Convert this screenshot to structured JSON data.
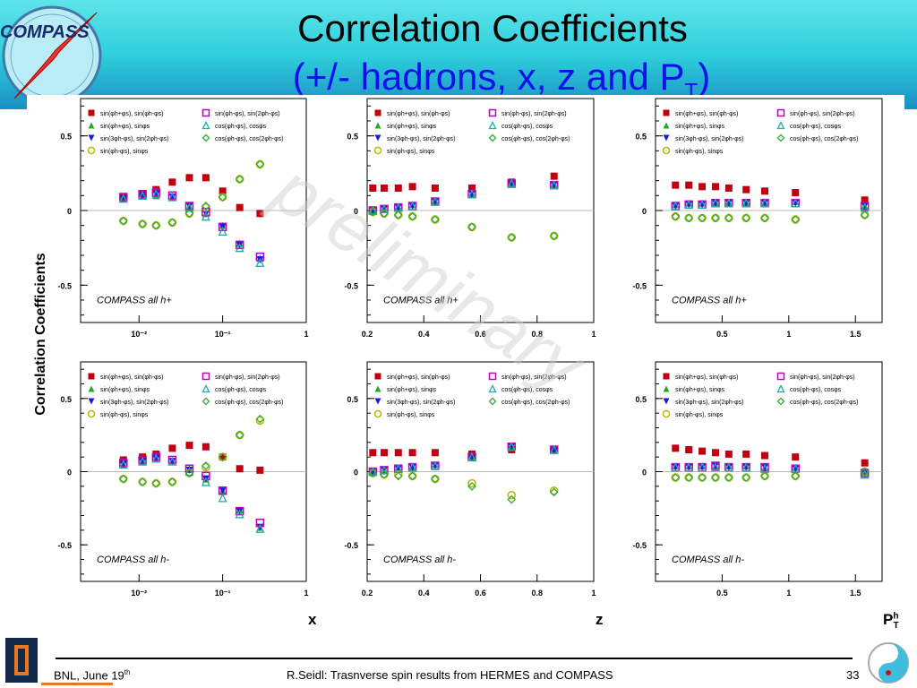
{
  "header": {
    "logo_text": "COMPASS",
    "title_line1": "Correlation Coefficients",
    "title_line2": "(+/- hadrons, x, z and P",
    "title_line2_sub": "T",
    "title_line2_end": ")"
  },
  "axes": {
    "ylabel": "Correlation Coefficients",
    "x_label": "x",
    "z_label": "z",
    "pt_label": "P",
    "pt_sup": "h",
    "pt_sub": "T"
  },
  "footer": {
    "left": "BNL, June 19",
    "left_sup": "th",
    "middle": "R.Seidl: Trasnverse spin results from HERMES and COMPASS",
    "page": "33"
  },
  "watermark": "preliminary",
  "legend": [
    {
      "label": "sin(φh+φs), sin(φh-φs)",
      "marker": "square-filled",
      "color": "#c0000f"
    },
    {
      "label": "sin(φh+φs), sinφs",
      "marker": "triangle-up",
      "color": "#22aa22"
    },
    {
      "label": "sin(3φh-φs), sin(2φh-φs)",
      "marker": "triangle-down",
      "color": "#1a1adc"
    },
    {
      "label": "sin(φh-φs), sinφs",
      "marker": "circle-open",
      "color": "#b8b800"
    },
    {
      "label": "sin(φh-φs), sin(2φh-φs)",
      "marker": "square-open",
      "color": "#c000c0"
    },
    {
      "label": "cos(φh-φs), cosφs",
      "marker": "triangle-open",
      "color": "#22aaaa"
    },
    {
      "label": "cos(φh-φs), cos(2φh-φs)",
      "marker": "diamond-open",
      "color": "#33aa33"
    }
  ],
  "chart_data": [
    {
      "type": "scatter",
      "id": "x_pos",
      "annotation": "COMPASS all h+",
      "xscale": "log",
      "xlim": [
        0.002,
        1
      ],
      "ylim": [
        -0.75,
        0.75
      ],
      "xticks": [
        "10⁻²",
        "10⁻¹",
        "1"
      ],
      "yticks": [
        "0.5",
        "0",
        "-0.5"
      ],
      "x": [
        0.0065,
        0.011,
        0.016,
        0.025,
        0.04,
        0.063,
        0.1,
        0.16,
        0.28
      ],
      "series": [
        {
          "name": "sin(φh+φs), sin(φh-φs)",
          "values": [
            0.09,
            0.11,
            0.14,
            0.19,
            0.22,
            0.22,
            0.13,
            0.02,
            -0.02
          ]
        },
        {
          "name": "sin(φh+φs), sinφs",
          "values": [
            0.08,
            0.1,
            0.1,
            0.09,
            0.03,
            -0.02,
            -0.1,
            -0.22,
            -0.32
          ]
        },
        {
          "name": "sin(3φh-φs), sin(2φh-φs)",
          "values": [
            0.08,
            0.1,
            0.11,
            0.09,
            0.03,
            -0.02,
            -0.11,
            -0.23,
            -0.33
          ]
        },
        {
          "name": "sin(φh-φs), sinφs",
          "values": [
            -0.07,
            -0.09,
            -0.1,
            -0.08,
            -0.02,
            0.02,
            0.09,
            0.21,
            0.31
          ]
        },
        {
          "name": "sin(φh-φs), sin(2φh-φs)",
          "values": [
            0.09,
            0.11,
            0.12,
            0.1,
            0.03,
            -0.01,
            -0.11,
            -0.23,
            -0.31
          ]
        },
        {
          "name": "cos(φh-φs), cosφs",
          "values": [
            0.08,
            0.1,
            0.11,
            0.09,
            0.02,
            -0.04,
            -0.14,
            -0.25,
            -0.35
          ]
        },
        {
          "name": "cos(φh-φs), cos(2φh-φs)",
          "values": [
            -0.07,
            -0.09,
            -0.1,
            -0.08,
            -0.02,
            0.03,
            0.09,
            0.21,
            0.31
          ]
        }
      ]
    },
    {
      "type": "scatter",
      "id": "z_pos",
      "annotation": "COMPASS all h+",
      "xscale": "linear",
      "xlim": [
        0.2,
        1
      ],
      "ylim": [
        -0.75,
        0.75
      ],
      "xticks": [
        "0.2",
        "0.4",
        "0.6",
        "0.8",
        "1"
      ],
      "yticks": [
        "0.5",
        "0",
        "-0.5"
      ],
      "x": [
        0.22,
        0.26,
        0.31,
        0.36,
        0.44,
        0.57,
        0.71,
        0.86
      ],
      "series": [
        {
          "name": "sin(φh+φs), sin(φh-φs)",
          "values": [
            0.15,
            0.15,
            0.15,
            0.16,
            0.15,
            0.15,
            0.19,
            0.23
          ]
        },
        {
          "name": "sin(φh+φs), sinφs",
          "values": [
            0.0,
            0.01,
            0.02,
            0.04,
            0.06,
            0.11,
            0.18,
            0.17
          ]
        },
        {
          "name": "sin(3φh-φs), sin(2φh-φs)",
          "values": [
            0.0,
            0.01,
            0.02,
            0.03,
            0.06,
            0.11,
            0.18,
            0.17
          ]
        },
        {
          "name": "sin(φh-φs), sinφs",
          "values": [
            -0.01,
            -0.02,
            -0.03,
            -0.04,
            -0.06,
            -0.11,
            -0.18,
            -0.17
          ]
        },
        {
          "name": "sin(φh-φs), sin(2φh-φs)",
          "values": [
            0.0,
            0.01,
            0.02,
            0.03,
            0.06,
            0.11,
            0.18,
            0.17
          ]
        },
        {
          "name": "cos(φh-φs), cosφs",
          "values": [
            0.0,
            0.01,
            0.02,
            0.03,
            0.06,
            0.11,
            0.18,
            0.17
          ]
        },
        {
          "name": "cos(φh-φs), cos(2φh-φs)",
          "values": [
            -0.01,
            -0.02,
            -0.03,
            -0.04,
            -0.06,
            -0.11,
            -0.18,
            -0.17
          ]
        }
      ]
    },
    {
      "type": "scatter",
      "id": "pt_pos",
      "annotation": "COMPASS all h+",
      "xscale": "linear",
      "xlim": [
        0,
        1.7
      ],
      "ylim": [
        -0.75,
        0.75
      ],
      "xticks": [
        "0.5",
        "1",
        "1.5"
      ],
      "yticks": [
        "0.5",
        "0",
        "-0.5"
      ],
      "x": [
        0.15,
        0.25,
        0.35,
        0.45,
        0.55,
        0.68,
        0.82,
        1.05,
        1.57
      ],
      "series": [
        {
          "name": "sin(φh+φs), sin(φh-φs)",
          "values": [
            0.17,
            0.17,
            0.16,
            0.16,
            0.15,
            0.14,
            0.13,
            0.12,
            0.07
          ]
        },
        {
          "name": "sin(φh+φs), sinφs",
          "values": [
            0.04,
            0.05,
            0.05,
            0.05,
            0.05,
            0.05,
            0.05,
            0.06,
            0.03
          ]
        },
        {
          "name": "sin(3φh-φs), sin(2φh-φs)",
          "values": [
            0.03,
            0.04,
            0.04,
            0.05,
            0.05,
            0.05,
            0.05,
            0.05,
            0.03
          ]
        },
        {
          "name": "sin(φh-φs), sinφs",
          "values": [
            -0.04,
            -0.05,
            -0.05,
            -0.05,
            -0.05,
            -0.05,
            -0.05,
            -0.06,
            -0.03
          ]
        },
        {
          "name": "sin(φh-φs), sin(2φh-φs)",
          "values": [
            0.03,
            0.04,
            0.04,
            0.05,
            0.05,
            0.05,
            0.05,
            0.05,
            0.03
          ]
        },
        {
          "name": "cos(φh-φs), cosφs",
          "values": [
            0.03,
            0.04,
            0.04,
            0.05,
            0.05,
            0.05,
            0.05,
            0.05,
            0.02
          ]
        },
        {
          "name": "cos(φh-φs), cos(2φh-φs)",
          "values": [
            -0.04,
            -0.05,
            -0.05,
            -0.05,
            -0.05,
            -0.05,
            -0.05,
            -0.06,
            -0.03
          ]
        }
      ]
    },
    {
      "type": "scatter",
      "id": "x_neg",
      "annotation": "COMPASS all h-",
      "xscale": "log",
      "xlim": [
        0.002,
        1
      ],
      "ylim": [
        -0.75,
        0.75
      ],
      "xticks": [
        "10⁻²",
        "10⁻¹",
        "1"
      ],
      "yticks": [
        "0.5",
        "0",
        "-0.5"
      ],
      "x": [
        0.0065,
        0.011,
        0.016,
        0.025,
        0.04,
        0.063,
        0.1,
        0.16,
        0.28
      ],
      "series": [
        {
          "name": "sin(φh+φs), sin(φh-φs)",
          "values": [
            0.08,
            0.1,
            0.12,
            0.16,
            0.18,
            0.17,
            0.1,
            0.02,
            0.01
          ]
        },
        {
          "name": "sin(φh+φs), sinφs",
          "values": [
            0.05,
            0.07,
            0.1,
            0.08,
            0.02,
            -0.05,
            -0.13,
            -0.26,
            -0.38
          ]
        },
        {
          "name": "sin(3φh-φs), sin(2φh-φs)",
          "values": [
            0.05,
            0.07,
            0.09,
            0.07,
            0.01,
            -0.05,
            -0.13,
            -0.27,
            -0.38
          ]
        },
        {
          "name": "sin(φh-φs), sinφs",
          "values": [
            -0.05,
            -0.07,
            -0.08,
            -0.07,
            -0.01,
            0.03,
            0.1,
            0.25,
            0.35
          ]
        },
        {
          "name": "sin(φh-φs), sin(2φh-φs)",
          "values": [
            0.06,
            0.08,
            0.1,
            0.08,
            0.02,
            -0.03,
            -0.13,
            -0.27,
            -0.35
          ]
        },
        {
          "name": "cos(φh-φs), cosφs",
          "values": [
            0.05,
            0.07,
            0.09,
            0.07,
            0.0,
            -0.07,
            -0.18,
            -0.29,
            -0.39
          ]
        },
        {
          "name": "cos(φh-φs), cos(2φh-φs)",
          "values": [
            -0.05,
            -0.07,
            -0.08,
            -0.07,
            -0.01,
            0.04,
            0.1,
            0.25,
            0.36
          ]
        }
      ]
    },
    {
      "type": "scatter",
      "id": "z_neg",
      "annotation": "COMPASS all h-",
      "xscale": "linear",
      "xlim": [
        0.2,
        1
      ],
      "ylim": [
        -0.75,
        0.75
      ],
      "xticks": [
        "0.2",
        "0.4",
        "0.6",
        "0.8",
        "1"
      ],
      "yticks": [
        "0.5",
        "0",
        "-0.5"
      ],
      "x": [
        0.22,
        0.26,
        0.31,
        0.36,
        0.44,
        0.57,
        0.71,
        0.86
      ],
      "series": [
        {
          "name": "sin(φh+φs), sin(φh-φs)",
          "values": [
            0.13,
            0.13,
            0.13,
            0.13,
            0.13,
            0.12,
            0.15,
            0.15
          ]
        },
        {
          "name": "sin(φh+φs), sinφs",
          "values": [
            0.0,
            0.01,
            0.02,
            0.03,
            0.05,
            0.1,
            0.17,
            0.15
          ]
        },
        {
          "name": "sin(3φh-φs), sin(2φh-φs)",
          "values": [
            0.0,
            0.01,
            0.02,
            0.03,
            0.04,
            0.1,
            0.17,
            0.14
          ]
        },
        {
          "name": "sin(φh-φs), sinφs",
          "values": [
            -0.01,
            -0.02,
            -0.02,
            -0.03,
            -0.05,
            -0.08,
            -0.16,
            -0.13
          ]
        },
        {
          "name": "sin(φh-φs), sin(2φh-φs)",
          "values": [
            0.0,
            0.01,
            0.02,
            0.03,
            0.04,
            0.1,
            0.17,
            0.15
          ]
        },
        {
          "name": "cos(φh-φs), cosφs",
          "values": [
            0.0,
            0.01,
            0.02,
            0.03,
            0.04,
            0.1,
            0.17,
            0.15
          ]
        },
        {
          "name": "cos(φh-φs), cos(2φh-φs)",
          "values": [
            -0.01,
            -0.02,
            -0.03,
            -0.03,
            -0.05,
            -0.1,
            -0.19,
            -0.14
          ]
        }
      ]
    },
    {
      "type": "scatter",
      "id": "pt_neg",
      "annotation": "COMPASS all h-",
      "xscale": "linear",
      "xlim": [
        0,
        1.7
      ],
      "ylim": [
        -0.75,
        0.75
      ],
      "xticks": [
        "0.5",
        "1",
        "1.5"
      ],
      "yticks": [
        "0.5",
        "0",
        "-0.5"
      ],
      "x": [
        0.15,
        0.25,
        0.35,
        0.45,
        0.55,
        0.68,
        0.82,
        1.05,
        1.57
      ],
      "series": [
        {
          "name": "sin(φh+φs), sin(φh-φs)",
          "values": [
            0.16,
            0.15,
            0.14,
            0.13,
            0.12,
            0.12,
            0.11,
            0.1,
            0.06
          ]
        },
        {
          "name": "sin(φh+φs), sinφs",
          "values": [
            0.04,
            0.04,
            0.04,
            0.04,
            0.04,
            0.04,
            0.03,
            0.03,
            0.0
          ]
        },
        {
          "name": "sin(3φh-φs), sin(2φh-φs)",
          "values": [
            0.03,
            0.03,
            0.03,
            0.04,
            0.03,
            0.03,
            0.03,
            0.02,
            -0.01
          ]
        },
        {
          "name": "sin(φh-φs), sinφs",
          "values": [
            -0.04,
            -0.04,
            -0.04,
            -0.04,
            -0.04,
            -0.04,
            -0.03,
            -0.03,
            0.0
          ]
        },
        {
          "name": "sin(φh-φs), sin(2φh-φs)",
          "values": [
            0.03,
            0.03,
            0.03,
            0.04,
            0.03,
            0.03,
            0.03,
            0.02,
            -0.01
          ]
        },
        {
          "name": "cos(φh-φs), cosφs",
          "values": [
            0.03,
            0.03,
            0.03,
            0.03,
            0.03,
            0.03,
            0.02,
            0.02,
            -0.02
          ]
        },
        {
          "name": "cos(φh-φs), cos(2φh-φs)",
          "values": [
            -0.04,
            -0.04,
            -0.04,
            -0.04,
            -0.04,
            -0.04,
            -0.03,
            -0.03,
            0.0
          ]
        }
      ]
    }
  ]
}
